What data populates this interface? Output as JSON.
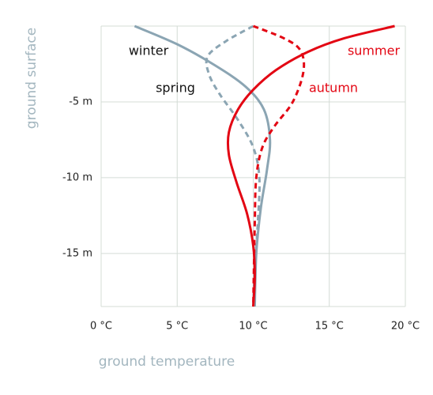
{
  "chart_data": {
    "type": "line",
    "xlabel": "ground temperature",
    "ylabel": "ground surface",
    "xlim": [
      0,
      20
    ],
    "ylim": [
      -18.5,
      0
    ],
    "xticks": [
      {
        "value": 0,
        "label": "0 °C"
      },
      {
        "value": 5,
        "label": "5 °C"
      },
      {
        "value": 10,
        "label": "10 °C"
      },
      {
        "value": 15,
        "label": "15 °C"
      },
      {
        "value": 20,
        "label": "20 °C"
      }
    ],
    "yticks": [
      {
        "value": -5,
        "label": "-5 m"
      },
      {
        "value": -10,
        "label": "-10 m"
      },
      {
        "value": -15,
        "label": "-15 m"
      }
    ],
    "grid": true,
    "series": [
      {
        "name": "winter",
        "color": "#8ba5b3",
        "label_color": "#111111",
        "style": "solid",
        "x": [
          2.2,
          5,
          7.5,
          9.5,
          10.7,
          11.1,
          10.9,
          10.5,
          10.2,
          10.1
        ],
        "values": [
          0,
          -1.2,
          -2.6,
          -4,
          -5.5,
          -7.5,
          -9.5,
          -12,
          -15,
          -18.5
        ]
      },
      {
        "name": "spring",
        "color": "#8ba5b3",
        "label_color": "#111111",
        "style": "dashed",
        "x": [
          10,
          8.2,
          7,
          7.1,
          7.8,
          9,
          10,
          10.4,
          10.3,
          10.1,
          10
        ],
        "values": [
          0,
          -1,
          -2,
          -3.2,
          -4.5,
          -6.2,
          -8,
          -10,
          -13,
          -16,
          -18.5
        ]
      },
      {
        "name": "summer",
        "color": "#e30613",
        "label_color": "#e30613",
        "style": "solid",
        "x": [
          19.3,
          16,
          13.6,
          11.5,
          10,
          9,
          8.4,
          8.4,
          8.9,
          9.6,
          10,
          10.1,
          10
        ],
        "values": [
          0,
          -0.8,
          -1.7,
          -2.9,
          -4.2,
          -5.5,
          -7,
          -8.5,
          -10.3,
          -12.4,
          -14.5,
          -16.5,
          -18.5
        ]
      },
      {
        "name": "autumn",
        "color": "#e30613",
        "label_color": "#e30613",
        "style": "dashed",
        "x": [
          10,
          12,
          13.1,
          13.3,
          12.6,
          11.4,
          10.6,
          10.2,
          10.1,
          10
        ],
        "values": [
          0,
          -0.8,
          -1.6,
          -3,
          -5,
          -6.6,
          -8,
          -10,
          -13,
          -18.5
        ]
      }
    ]
  }
}
